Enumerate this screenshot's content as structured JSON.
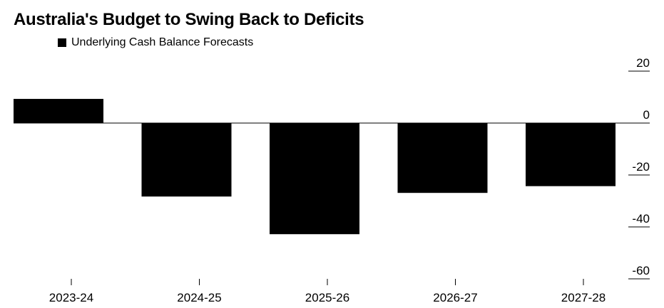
{
  "chart_data": {
    "type": "bar",
    "title": "Australia's Budget to Swing Back to Deficits",
    "xlabel": "",
    "ylabel": "",
    "categories": [
      "2023-24",
      "2024-25",
      "2025-26",
      "2026-27",
      "2027-28"
    ],
    "series": [
      {
        "name": "Underlying Cash Balance Forecasts",
        "values": [
          9.3,
          -28.3,
          -42.8,
          -26.9,
          -24.3
        ]
      }
    ],
    "ylim": [
      -60,
      20
    ],
    "yticks": [
      20,
      0,
      -20,
      -40,
      -60
    ],
    "y_axis_position": "right",
    "grid": false,
    "legend_position": "top-left",
    "bar_color": "#000000",
    "axis_color": "#000000"
  }
}
